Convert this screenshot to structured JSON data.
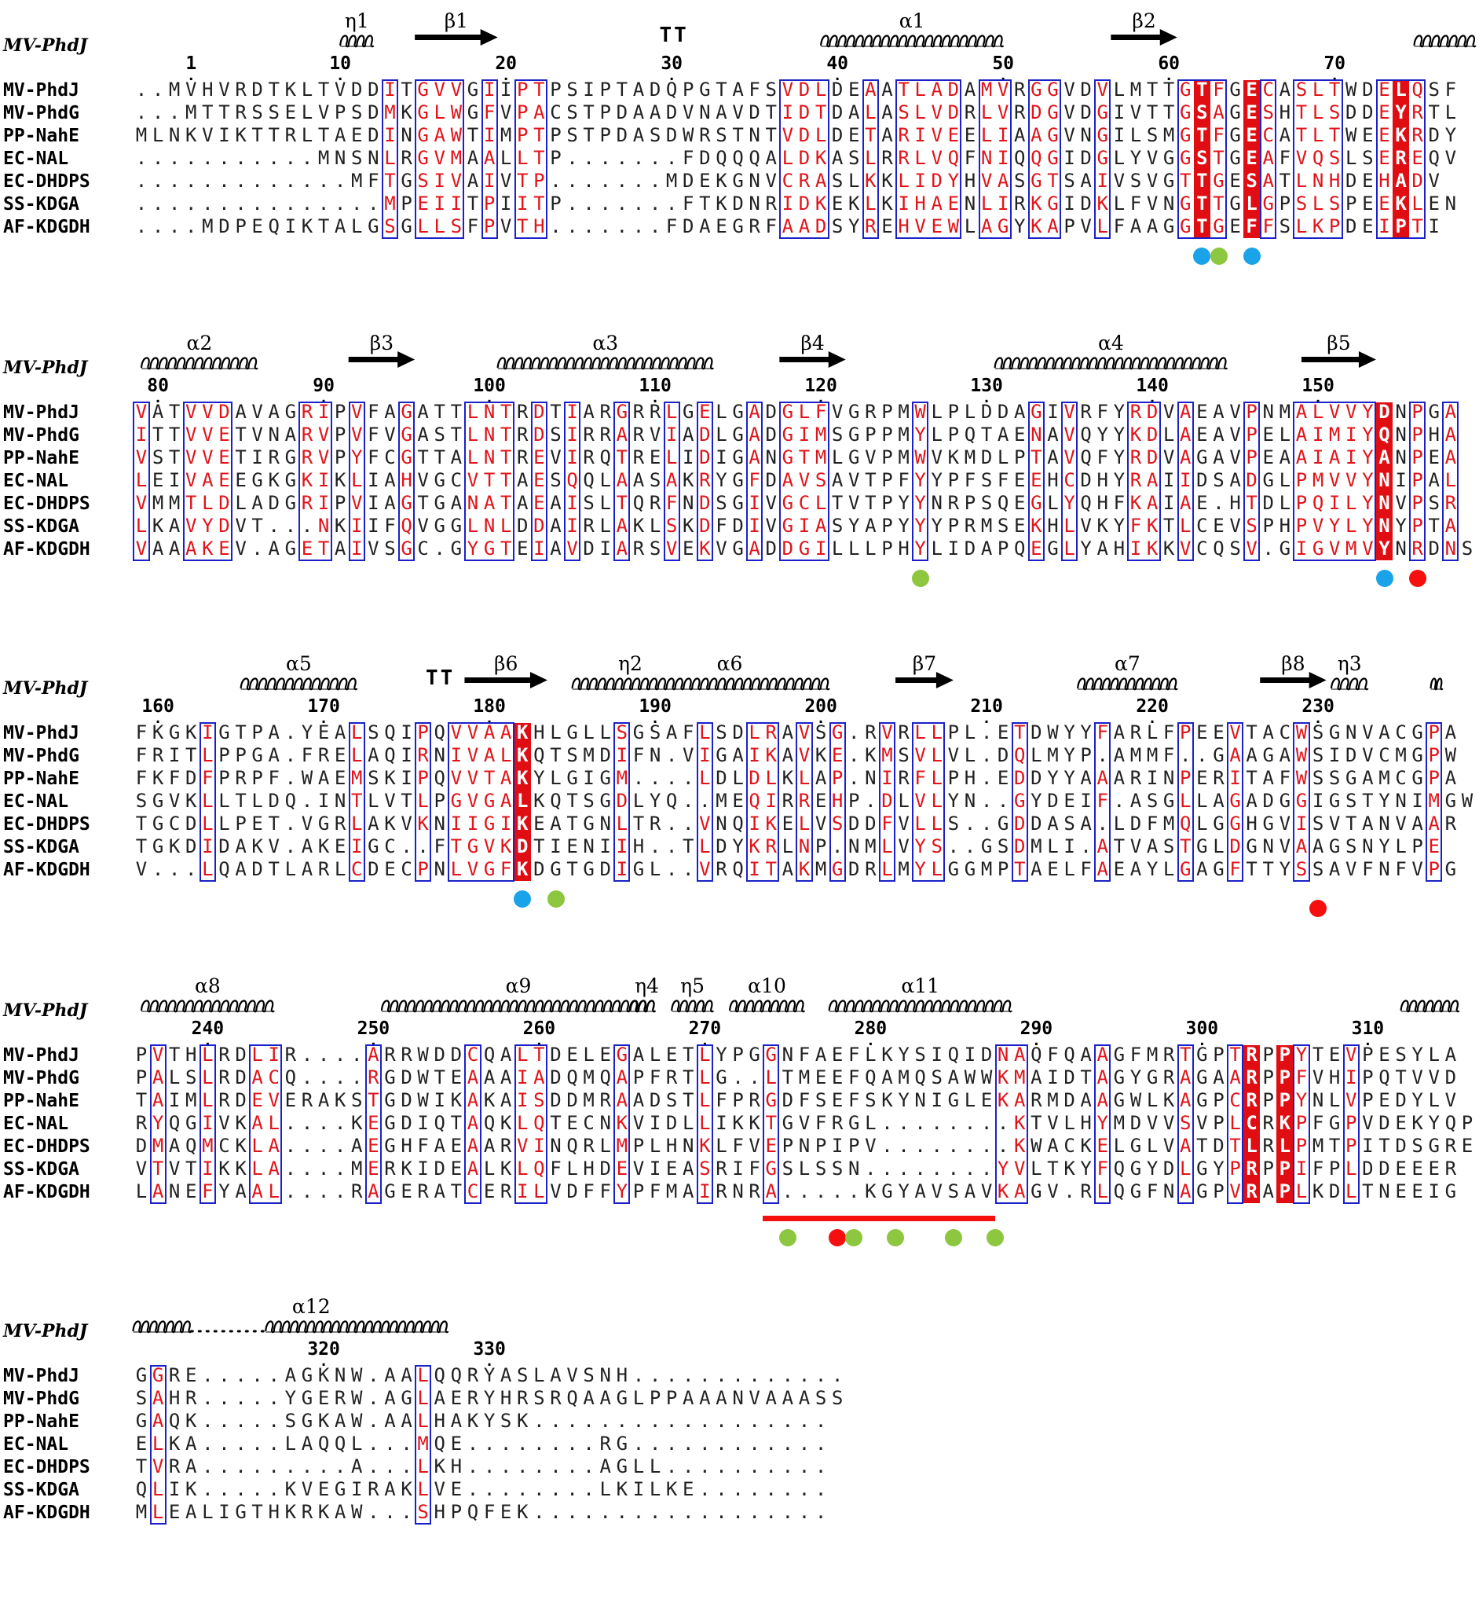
{
  "header_label": "MV-PhdJ",
  "sequence_names": [
    "MV-PhdJ",
    "MV-PhdG",
    "PP-NahE",
    "EC-NAL",
    "EC-DHDPS",
    "SS-KDGA",
    "AF-KDGDH"
  ],
  "colors": {
    "identical_background": "#e00d12",
    "similar_text": "#e0141a",
    "similarity_box": "#1b21c9",
    "dot_blue": "#1aa3e8",
    "dot_green": "#8dc63f",
    "dot_red": "#f50f0f",
    "region_bar": "#f50f0f"
  },
  "blocks": [
    {
      "ticks": [
        {
          "v": 1,
          "c": 3
        },
        {
          "v": 10,
          "c": 12
        },
        {
          "v": 20,
          "c": 22
        },
        {
          "v": 30,
          "c": 32
        },
        {
          "v": 40,
          "c": 42
        },
        {
          "v": 50,
          "c": 52
        },
        {
          "v": 60,
          "c": 62
        },
        {
          "v": 70,
          "c": 72
        }
      ],
      "rows": [
        "..MVHVRDTKLTVDDITGVVGIIPTPSIPTADQPGTAFSVDLDEAATLADAMVRGGVDVLMTTGTFGECASLTWDELQSF",
        "...MTTRSSELVPSDMKGLWGFVPACSTPDAADVNAVDTIDTDALASLVDRLVRDGVDGIVTTGSAGESHTLSDDEYRTL",
        "MLNKVIKTTRLTAEDINGAWTIMPTPSTPDASDWRSTNTVDLDETARIVEELIAAGVNGILSMGTFGECATLTWEEKRDY",
        "...........MNSNLRGVMAALLTP.......FDQQQALDKASLRRLVQFNIQQGIDGLYVGGSTGEAFVQSLSEREQV",
        ".............MFTGSIVAIVTP.......MDEKGNVCRASLKKLIDYHVASGTSAIVSVGTTGESATLNHDEHADV",
        "...............MPEIITPIITP.......FTKDNRIDKEKLKIHAENLIRKGIDKLFVNGTTGLGPSLSPEEKLEN",
        "....MDPEQIKTALGSGLLSFPVTH.......FDAEGRFAADSYREHVEWLAGYKAPVLFAAGGTGEFFSLKPDEIPTI"
      ],
      "identical": [
        64,
        67,
        76
      ],
      "boxes": [
        [
          15,
          15
        ],
        [
          17,
          19
        ],
        [
          21,
          21
        ],
        [
          23,
          24
        ],
        [
          39,
          41
        ],
        [
          44,
          44
        ],
        [
          46,
          49
        ],
        [
          51,
          52
        ],
        [
          54,
          55
        ],
        [
          58,
          58
        ],
        [
          63,
          65
        ],
        [
          68,
          68
        ],
        [
          70,
          72
        ],
        [
          75,
          77
        ]
      ],
      "struct": [
        {
          "k": "helix",
          "from": 12.5,
          "to": 14.5,
          "label": "η1"
        },
        {
          "k": "arrow",
          "from": 17,
          "to": 22,
          "label": "β1"
        },
        {
          "k": "tt",
          "at": 32.3
        },
        {
          "k": "helix",
          "from": 41.5,
          "to": 52.5,
          "label": "α1"
        },
        {
          "k": "arrow",
          "from": 59,
          "to": 63,
          "label": "β2"
        },
        {
          "k": "helix",
          "from": 77.3,
          "to": 81,
          "label": ""
        }
      ],
      "dots": [
        {
          "c": 64,
          "col": "dot_blue",
          "row": 0
        },
        {
          "c": 65,
          "col": "dot_green",
          "row": 0
        },
        {
          "c": 67,
          "col": "dot_blue",
          "row": 0
        }
      ],
      "bar": null
    },
    {
      "ticks": [
        {
          "v": 80,
          "c": 1
        },
        {
          "v": 90,
          "c": 11
        },
        {
          "v": 100,
          "c": 21
        },
        {
          "v": 110,
          "c": 31
        },
        {
          "v": 120,
          "c": 41
        },
        {
          "v": 130,
          "c": 51
        },
        {
          "v": 140,
          "c": 61
        },
        {
          "v": 150,
          "c": 71
        }
      ],
      "rows": [
        "VATVVDAVAGRIPVFAGATTLNTRDTIARGRRLGELGADGLFVGRPMWLPLDDAGIVRFYRDVAEAVPNMALVVYDNPGA",
        "ITTVVETVNARVPVFVGASTLNTRDSIRRARVIADLGADGIMSGPPMYLPQTAENAVQYYKDLAEAVPELAIMIYQNPHA",
        "VSTVVETIRGRVPYFCGTTALNTREVIRQTRELIDIGANGTMLGVPMWVKMDLPTAVQFYRDVAGAVPEAAIAIYANPEA",
        "LEIVAEEGKGKIKLIAHVGCVTTAESQQLAASAKRYGFDAVSAVTPFYYPFSFEEHCDHYRAIIDSADGLPMVVYNIPAL",
        "VMMTLDLADGRIPVIAGTGANATAEAISLTQRFNDSGIVGCLTVTPYYNRPSQEGLYQHFKAIAE.HTDLPQILYNVPSR",
        "LKAVYDVT...NKIIFQVGGLNLDDAIRLAKLSKDFDIVGIASYAPYYYPRMSEKHLVKYFKTLCEVSPHPVYLYNYPTA",
        "VAAAKEV.AGETAIVSGC.GYGTEIAVDIARSVEKVGADDGILLLPHYLIDAPQEGLYAHIKKVCQSV.GIGVMVYNRDNS"
      ],
      "identical": [
        75
      ],
      "boxes": [
        [
          0,
          0
        ],
        [
          3,
          5
        ],
        [
          10,
          11
        ],
        [
          13,
          13
        ],
        [
          16,
          16
        ],
        [
          20,
          22
        ],
        [
          24,
          24
        ],
        [
          26,
          26
        ],
        [
          29,
          29
        ],
        [
          32,
          32
        ],
        [
          34,
          34
        ],
        [
          37,
          37
        ],
        [
          39,
          41
        ],
        [
          47,
          47
        ],
        [
          54,
          54
        ],
        [
          56,
          56
        ],
        [
          60,
          61
        ],
        [
          63,
          63
        ],
        [
          67,
          67
        ],
        [
          70,
          74
        ],
        [
          77,
          77
        ],
        [
          79,
          79
        ]
      ],
      "struct": [
        {
          "k": "helix",
          "from": 0.5,
          "to": 7.5,
          "label": "α2"
        },
        {
          "k": "arrow",
          "from": 13,
          "to": 17,
          "label": "β3"
        },
        {
          "k": "helix",
          "from": 22,
          "to": 35,
          "label": "α3"
        },
        {
          "k": "arrow",
          "from": 39,
          "to": 43,
          "label": "β4"
        },
        {
          "k": "helix",
          "from": 52,
          "to": 66,
          "label": "α4"
        },
        {
          "k": "arrow",
          "from": 70.5,
          "to": 75,
          "label": "β5"
        }
      ],
      "dots": [
        {
          "c": 47,
          "col": "dot_green",
          "row": 0
        },
        {
          "c": 75,
          "col": "dot_blue",
          "row": 0
        },
        {
          "c": 77,
          "col": "dot_red",
          "row": 0
        }
      ],
      "bar": null
    },
    {
      "ticks": [
        {
          "v": 160,
          "c": 1
        },
        {
          "v": 170,
          "c": 11
        },
        {
          "v": 180,
          "c": 21
        },
        {
          "v": 190,
          "c": 31
        },
        {
          "v": 200,
          "c": 41
        },
        {
          "v": 210,
          "c": 51
        },
        {
          "v": 220,
          "c": 61
        },
        {
          "v": 230,
          "c": 71
        }
      ],
      "rows": [
        "FKGKIGTPA.YEALSQIPQVVAAKHLGLLSGSAFLSDLRAVSG.RVRLLPL.ETDWYYFARLFPEEVTACWSGNVACGPA",
        "FRITLPPGA.FRELAQIRNIVALKQTSMDIFN.VIGAIKAVKE.KMSVLVL.DQLMYP.AMMF..GAAGAWSIDVCMGPW",
        "FKFDFPRPF.WAEMSKIPQVVTAKYLGIGM....LDLDLKLAP.NIRFLPH.EDDYYAAARINPERITAFWSSGAMCGPA",
        "SGVKLLTLDQ.INTLVTLPGVGALKQTSGDLYQ..MEQIRREHP.DLVLYN..GYDEIF.ASGLLAGADGGIGSTYNIMGW",
        "TGCDLLPET.VGRLAKVKNIIGIKEATGNLTR..VNQIKELVSDDFVLLS..GDDASA.LDFMQLGGHGVISVTANVAAR",
        "TGKDIDAKV.AKEIGC..FTGVKDTIENIIH..TLDYKRLNP.NMLVYS..GSDMLI.ATVASTGLDGNVAAGSNYLPE",
        "V...LQADTLARLCDECPNLVGFKDGTGDIGL..VRQITAKMGDRLMYLGGMPTAELFAEAYLGAGFTTYSSAVFNFVPG"
      ],
      "identical": [
        23
      ],
      "boxes": [
        [
          4,
          4
        ],
        [
          13,
          13
        ],
        [
          17,
          17
        ],
        [
          19,
          22
        ],
        [
          29,
          29
        ],
        [
          34,
          34
        ],
        [
          37,
          38
        ],
        [
          40,
          40
        ],
        [
          42,
          42
        ],
        [
          45,
          45
        ],
        [
          47,
          48
        ],
        [
          53,
          53
        ],
        [
          58,
          58
        ],
        [
          63,
          63
        ],
        [
          66,
          66
        ],
        [
          70,
          70
        ],
        [
          78,
          78
        ]
      ],
      "struct": [
        {
          "k": "helix",
          "from": 6.5,
          "to": 13.5,
          "label": "α5"
        },
        {
          "k": "tt",
          "at": 18.2
        },
        {
          "k": "arrow",
          "from": 20,
          "to": 25,
          "label": "β6"
        },
        {
          "k": "helix",
          "from": 26.5,
          "to": 42,
          "label": "η2α6"
        },
        {
          "k": "arrow",
          "from": 46,
          "to": 49.5,
          "label": "β7"
        },
        {
          "k": "helix",
          "from": 57,
          "to": 63,
          "label": "α7"
        },
        {
          "k": "arrow",
          "from": 68,
          "to": 72,
          "label": "β8"
        },
        {
          "k": "helix",
          "from": 72.3,
          "to": 74.5,
          "label": "η3"
        },
        {
          "k": "helix",
          "from": 78.3,
          "to": 79,
          "label": ""
        }
      ],
      "dots": [
        {
          "c": 23,
          "col": "dot_blue",
          "row": 0
        },
        {
          "c": 25,
          "col": "dot_green",
          "row": 0
        },
        {
          "c": 71,
          "col": "dot_red",
          "row": 1
        }
      ],
      "bar": null
    },
    {
      "ticks": [
        {
          "v": 240,
          "c": 4
        },
        {
          "v": 250,
          "c": 14
        },
        {
          "v": 260,
          "c": 24
        },
        {
          "v": 270,
          "c": 34
        },
        {
          "v": 280,
          "c": 44
        },
        {
          "v": 290,
          "c": 54
        },
        {
          "v": 300,
          "c": 64
        },
        {
          "v": 310,
          "c": 74
        }
      ],
      "rows": [
        "PVTHLRDLIR....ARRWDDCQALTDELEGALETLYPGGNFAEFLKYSIQIDNAQFQAAGFMRTGPTRPPYTEVPESYLA",
        "PALSLRDACQ....RGDWTEAAAIADQMQAPFRTLG..LTMEEFQAMQSAWWKMAIDTAGYGRAGAARPPFVHIPQTVVD",
        "TAIMLRDEVERAKSTGDWIKAKAISDDMRAADSTLFPRGDFSEFSKYNIGLEKARMDAAGWLKAGPCRPPYNLVPEDYLV",
        "RYQGIVKAL....KEGDIQTAQKLQTECNKVIDLLIKKTGVFRGL........KTVLHYMDVVSVPLCRKPFGPVDEKYQP",
        "DMAQMCKLA....AEGHFAEAARVINQRLMPLHNKLFVEPNPIPV........KWACKELGLVATDTLRLPMTPITDSGRE",
        "VTVTIKKLA....MERKIDEALKLQFLHDEVIEASRIFGSLSSN........YVLTKYFQGYDLGYPRPPIFPLDDEEER",
        "LANEFYAAL....RAGERATCERILVDFFYPFMAIRNRA.....KGYAVSAVKAGV.RLQGFNAGPVRAPLKDLTNEEIG"
      ],
      "identical": [
        67,
        69
      ],
      "boxes": [
        [
          1,
          1
        ],
        [
          4,
          4
        ],
        [
          7,
          8
        ],
        [
          14,
          14
        ],
        [
          20,
          20
        ],
        [
          23,
          24
        ],
        [
          29,
          29
        ],
        [
          34,
          34
        ],
        [
          38,
          38
        ],
        [
          52,
          53
        ],
        [
          58,
          58
        ],
        [
          63,
          63
        ],
        [
          66,
          66
        ],
        [
          70,
          70
        ],
        [
          73,
          73
        ]
      ],
      "struct": [
        {
          "k": "helix",
          "from": 0.5,
          "to": 8.5,
          "label": "α8"
        },
        {
          "k": "helix",
          "from": 15,
          "to": 31.5,
          "label": "α9"
        },
        {
          "k": "helix",
          "from": 30,
          "to": 31.5,
          "label": "η4"
        },
        {
          "k": "helix",
          "from": 32.5,
          "to": 35,
          "label": "η5"
        },
        {
          "k": "helix",
          "from": 36,
          "to": 40.5,
          "label": "α10"
        },
        {
          "k": "helix",
          "from": 42,
          "to": 53,
          "label": "α11"
        },
        {
          "k": "helix",
          "from": 76.5,
          "to": 80,
          "label": ""
        }
      ],
      "dots": [
        {
          "c": 39,
          "col": "dot_green",
          "row": 0
        },
        {
          "c": 42,
          "col": "dot_red",
          "row": 0
        },
        {
          "c": 43,
          "col": "dot_green",
          "row": 0
        },
        {
          "c": 45.5,
          "col": "dot_green",
          "row": 0
        },
        {
          "c": 49,
          "col": "dot_green",
          "row": 0
        },
        {
          "c": 51.5,
          "col": "dot_green",
          "row": 0
        }
      ],
      "bar": {
        "from": 38,
        "to": 52
      }
    },
    {
      "ticks": [
        {
          "v": 320,
          "c": 11
        },
        {
          "v": 330,
          "c": 21
        }
      ],
      "rows": [
        "GGRE.....AGKNW.AALQQRYASLAVSNH.............",
        "SAHR.....YGERW.AGLAERYHRSRQAAGLPPAAANVAAASS",
        "GAQK.....SGKAW.AALHAKYSK..................",
        "ELKA.....LAQQL...MQE........RG............",
        "TVRA.........A...LKH........AGLL..........",
        "QLIK.....KVEGIRAKLVE........LKILKE........",
        "MLEALIGTHKRKAW...SHPQFEK.................."
      ],
      "identical": [],
      "boxes": [
        [
          1,
          1
        ],
        [
          17,
          17
        ]
      ],
      "struct": [
        {
          "k": "helix",
          "from": 0,
          "to": 3.5,
          "label": ""
        },
        {
          "k": "dotted",
          "from": 3.5,
          "to": 8
        },
        {
          "k": "helix",
          "from": 8,
          "to": 13.5,
          "label": "α12"
        },
        {
          "k": "helix",
          "from": 13.5,
          "to": 19,
          "label": ""
        }
      ],
      "dots": [],
      "bar": null
    }
  ]
}
